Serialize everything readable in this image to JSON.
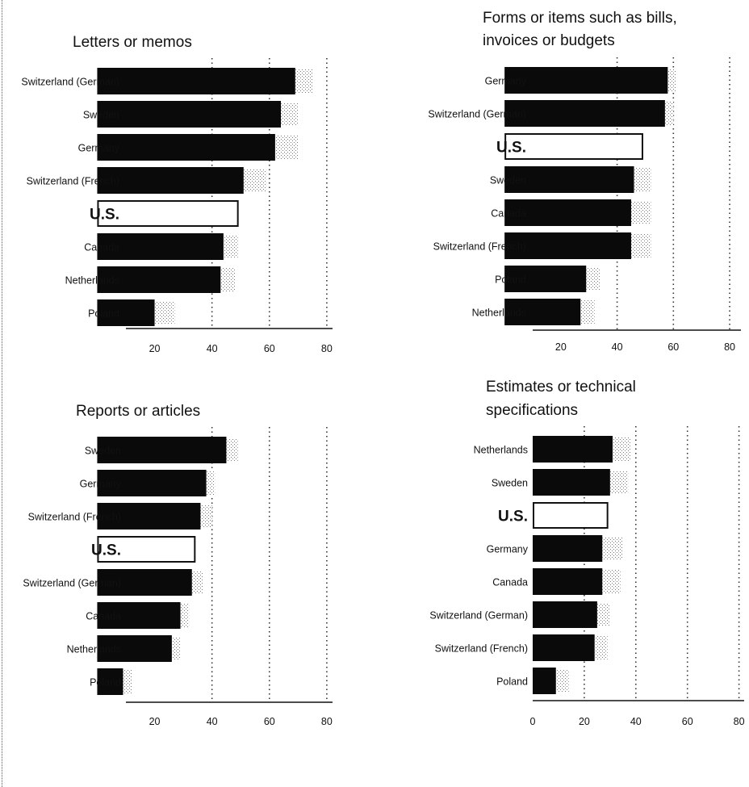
{
  "chart_data": [
    {
      "type": "bar",
      "title": "Letters or memos",
      "categories": [
        "Switzerland (German)",
        "Sweden",
        "Germany",
        "Switzerland (French)",
        "U.S.",
        "Canada",
        "Netherlands",
        "Poland"
      ],
      "values": [
        69,
        64,
        62,
        51,
        49,
        44,
        43,
        20
      ],
      "errors": [
        6,
        6,
        8,
        8,
        0,
        5,
        5,
        7
      ],
      "highlight": "U.S.",
      "xaxis_min": 0,
      "xlim": [
        10,
        82
      ],
      "xticks": [
        20,
        40,
        60,
        80
      ],
      "gridlines": [
        40,
        60,
        80
      ],
      "grid": true
    },
    {
      "type": "bar",
      "title_lines": [
        "Forms or items such as bills,",
        "invoices or budgets"
      ],
      "categories": [
        "Germany",
        "Switzerland (German)",
        "U.S.",
        "Sweden",
        "Canada",
        "Switzerland (French)",
        "Poland",
        "Netherlands"
      ],
      "values": [
        58,
        57,
        49,
        46,
        45,
        45,
        29,
        27
      ],
      "errors": [
        3,
        3,
        0,
        6,
        7,
        7,
        5,
        5
      ],
      "highlight": "U.S.",
      "xaxis_min": 0,
      "xlim": [
        10,
        84
      ],
      "xticks": [
        20,
        40,
        60,
        80
      ],
      "gridlines": [
        40,
        60,
        80
      ],
      "grid": true
    },
    {
      "type": "bar",
      "title": "Reports or articles",
      "categories": [
        "Sweden",
        "Germany",
        "Switzerland (French)",
        "U.S.",
        "Switzerland (German)",
        "Canada",
        "Netherlands",
        "Poland"
      ],
      "values": [
        45,
        38,
        36,
        34,
        33,
        29,
        26,
        9
      ],
      "errors": [
        4,
        3,
        4,
        0,
        4,
        3,
        3,
        3
      ],
      "highlight": "U.S.",
      "xaxis_min": 0,
      "xlim": [
        10,
        82
      ],
      "xticks": [
        20,
        40,
        60,
        80
      ],
      "gridlines": [
        40,
        60,
        80
      ],
      "grid": true
    },
    {
      "type": "bar",
      "title_lines": [
        "Estimates or technical",
        "specifications"
      ],
      "categories": [
        "Netherlands",
        "Sweden",
        "U.S.",
        "Germany",
        "Canada",
        "Switzerland (German)",
        "Switzerland (French)",
        "Poland"
      ],
      "values": [
        31,
        30,
        29,
        27,
        27,
        25,
        24,
        9
      ],
      "errors": [
        7,
        7,
        0,
        8,
        7,
        5,
        5,
        5
      ],
      "highlight": "U.S.",
      "xaxis_min": 0,
      "xlim": [
        0,
        82
      ],
      "xticks": [
        0,
        20,
        40,
        60,
        80
      ],
      "gridlines": [
        20,
        40,
        60,
        80
      ],
      "grid": true
    }
  ]
}
